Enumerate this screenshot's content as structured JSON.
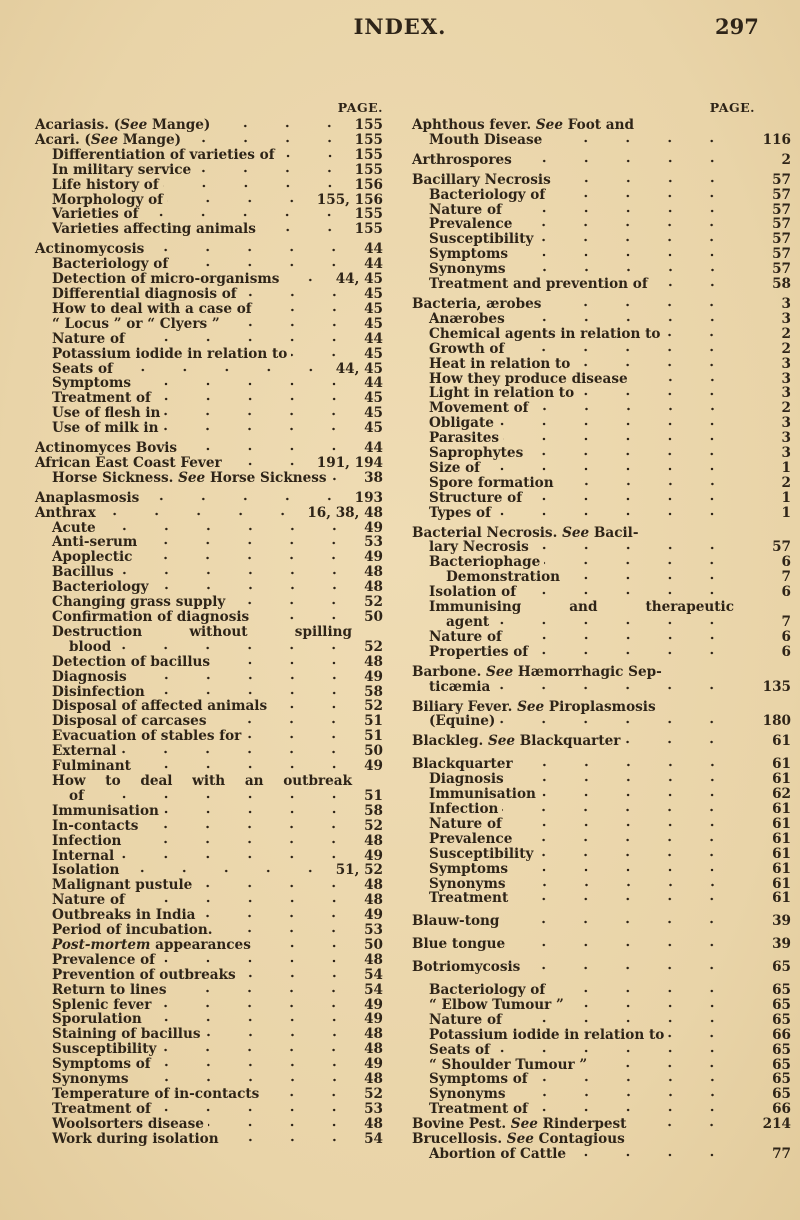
{
  "header": {
    "title": "INDEX.",
    "page_number": "297"
  },
  "left": {
    "page_label": "PAGE.",
    "entries": [
      {
        "t": "Acariasis. (",
        "em": "See",
        "t2": " Mange)",
        "p": "155",
        "i": 0
      },
      {
        "t": "Acari. (",
        "em": "See",
        "t2": " Mange)",
        "p": "155",
        "i": 0
      },
      {
        "t": "Differentiation of varieties of",
        "p": "155",
        "i": 1
      },
      {
        "t": "In military service",
        "p": "155",
        "i": 1
      },
      {
        "t": "Life history of",
        "p": "156",
        "i": 1
      },
      {
        "t": "Morphology of",
        "p": "155, 156",
        "i": 1
      },
      {
        "t": "Varieties of",
        "p": "155",
        "i": 1
      },
      {
        "t": "Varieties affecting animals",
        "p": "155",
        "i": 1
      },
      {
        "t": "Actinomycosis",
        "p": "44",
        "i": 0,
        "g": 1
      },
      {
        "t": "Bacteriology of",
        "p": "44",
        "i": 1
      },
      {
        "t": "Detection of micro-organisms",
        "p": "44, 45",
        "i": 1
      },
      {
        "t": "Differential diagnosis of",
        "p": "45",
        "i": 1
      },
      {
        "t": "How to deal with a case of",
        "p": "45",
        "i": 1
      },
      {
        "t": "“ Locus ” or “ Clyers ”",
        "p": "45",
        "i": 1
      },
      {
        "t": "Nature of",
        "p": "44",
        "i": 1
      },
      {
        "t": "Potassium iodide in relation to",
        "p": "45",
        "i": 1
      },
      {
        "t": "Seats of",
        "p": "44, 45",
        "i": 1
      },
      {
        "t": "Symptoms",
        "p": "44",
        "i": 1
      },
      {
        "t": "Treatment of",
        "p": "45",
        "i": 1
      },
      {
        "t": "Use of flesh in",
        "p": "45",
        "i": 1
      },
      {
        "t": "Use of milk in",
        "p": "45",
        "i": 1
      },
      {
        "t": "Actinomyces Bovis",
        "p": "44",
        "i": 0,
        "g": 1
      },
      {
        "t": "African East Coast Fever",
        "p": "191, 194",
        "i": 0
      },
      {
        "t": "Horse Sickness. ",
        "em": "See",
        "t2": " Horse Sickness",
        "p": "38",
        "i": 1
      },
      {
        "t": "Anaplasmosis",
        "p": "193",
        "i": 0,
        "g": 1
      },
      {
        "t": "Anthrax",
        "p": "16, 38, 48",
        "i": 0
      },
      {
        "t": "Acute",
        "p": "49",
        "i": 1
      },
      {
        "t": "Anti-serum",
        "p": "53",
        "i": 1
      },
      {
        "t": "Apoplectic",
        "p": "49",
        "i": 1
      },
      {
        "t": "Bacillus",
        "p": "48",
        "i": 1
      },
      {
        "t": "Bacteriology",
        "p": "48",
        "i": 1
      },
      {
        "t": "Changing grass supply",
        "p": "52",
        "i": 1
      },
      {
        "t": "Confirmation of diagnosis",
        "p": "50",
        "i": 1
      },
      {
        "t": "Destruction without spilling",
        "cont": "blood",
        "p": "52",
        "i": 1
      },
      {
        "t": "Detection of bacillus",
        "p": "48",
        "i": 1
      },
      {
        "t": "Diagnosis",
        "p": "49",
        "i": 1
      },
      {
        "t": "Disinfection",
        "p": "58",
        "i": 1
      },
      {
        "t": "Disposal of affected animals",
        "p": "52",
        "i": 1
      },
      {
        "t": "Disposal of carcases",
        "p": "51",
        "i": 1
      },
      {
        "t": "Evacuation of stables for",
        "p": "51",
        "i": 1
      },
      {
        "t": "External",
        "p": "50",
        "i": 1
      },
      {
        "t": "Fulminant",
        "p": "49",
        "i": 1
      },
      {
        "t": "How to deal with an outbreak",
        "cont": "of",
        "p": "51",
        "i": 1
      },
      {
        "t": "Immunisation",
        "p": "58",
        "i": 1
      },
      {
        "t": "In-contacts",
        "p": "52",
        "i": 1
      },
      {
        "t": "Infection",
        "p": "48",
        "i": 1
      },
      {
        "t": "Internal",
        "p": "49",
        "i": 1
      },
      {
        "t": "Isolation",
        "p": "51, 52",
        "i": 1
      },
      {
        "t": "Malignant pustule",
        "p": "48",
        "i": 1
      },
      {
        "t": "Nature of",
        "p": "48",
        "i": 1
      },
      {
        "t": "Outbreaks in India",
        "p": "49",
        "i": 1
      },
      {
        "t": "Period of incubation.",
        "p": "53",
        "i": 1
      },
      {
        "t": "",
        "em": "Post-mortem",
        "t2": " appearances",
        "p": "50",
        "i": 1
      },
      {
        "t": "Prevalence of",
        "p": "48",
        "i": 1
      },
      {
        "t": "Prevention of outbreaks",
        "p": "54",
        "i": 1
      },
      {
        "t": "Return to lines",
        "p": "54",
        "i": 1
      },
      {
        "t": "Splenic fever",
        "p": "49",
        "i": 1
      },
      {
        "t": "Sporulation",
        "p": "49",
        "i": 1
      },
      {
        "t": "Staining of bacillus",
        "p": "48",
        "i": 1
      },
      {
        "t": "Susceptibility",
        "p": "48",
        "i": 1
      },
      {
        "t": "Symptoms of",
        "p": "49",
        "i": 1
      },
      {
        "t": "Synonyms",
        "p": "48",
        "i": 1
      },
      {
        "t": "Temperature of in-contacts",
        "p": "52",
        "i": 1
      },
      {
        "t": "Treatment of",
        "p": "53",
        "i": 1
      },
      {
        "t": "Woolsorters disease",
        "p": "48",
        "i": 1
      },
      {
        "t": "Work during isolation",
        "p": "54",
        "i": 1
      }
    ]
  },
  "right": {
    "page_label": "PAGE.",
    "entries": [
      {
        "t": "Aphthous fever. ",
        "em": "See",
        "t2": " Foot and",
        "cont": "Mouth Disease",
        "p": "116",
        "i": 0
      },
      {
        "t": "Arthrospores",
        "p": "2",
        "i": 0,
        "g": 1
      },
      {
        "t": "Bacillary Necrosis",
        "p": "57",
        "i": 0,
        "g": 1
      },
      {
        "t": "Bacteriology of",
        "p": "57",
        "i": 1
      },
      {
        "t": "Nature of",
        "p": "57",
        "i": 1
      },
      {
        "t": "Prevalence",
        "p": "57",
        "i": 1
      },
      {
        "t": "Susceptibility",
        "p": "57",
        "i": 1
      },
      {
        "t": "Symptoms",
        "p": "57",
        "i": 1
      },
      {
        "t": "Synonyms",
        "p": "57",
        "i": 1
      },
      {
        "t": "Treatment and prevention of",
        "p": "58",
        "i": 1
      },
      {
        "t": "Bacteria, ærobes",
        "p": "3",
        "i": 0,
        "g": 1
      },
      {
        "t": "Anærobes",
        "p": "3",
        "i": 1
      },
      {
        "t": "Chemical agents in relation to",
        "p": "2",
        "i": 1
      },
      {
        "t": "Growth of",
        "p": "2",
        "i": 1
      },
      {
        "t": "Heat in relation to",
        "p": "3",
        "i": 1
      },
      {
        "t": "How they produce disease",
        "p": "3",
        "i": 1
      },
      {
        "t": "Light in relation to",
        "p": "3",
        "i": 1
      },
      {
        "t": "Movement of",
        "p": "2",
        "i": 1
      },
      {
        "t": "Obligate",
        "p": "3",
        "i": 1
      },
      {
        "t": "Parasites",
        "p": "3",
        "i": 1
      },
      {
        "t": "Saprophytes",
        "p": "3",
        "i": 1
      },
      {
        "t": "Size of",
        "p": "1",
        "i": 1
      },
      {
        "t": "Spore formation",
        "p": "2",
        "i": 1
      },
      {
        "t": "Structure of",
        "p": "1",
        "i": 1
      },
      {
        "t": "Types of",
        "p": "1",
        "i": 1
      },
      {
        "t": "Bacterial Necrosis. ",
        "em": "See",
        "t2": " Bacil-",
        "cont": "lary Necrosis",
        "p": "57",
        "i": 0,
        "g": 1
      },
      {
        "t": "Bacteriophage",
        "p": "6",
        "i": 1
      },
      {
        "t": "Demonstration",
        "p": "7",
        "i": 2
      },
      {
        "t": "Isolation of",
        "p": "6",
        "i": 1
      },
      {
        "t": "Immunising and therapeutic",
        "cont": "agent",
        "p": "7",
        "i": 1
      },
      {
        "t": "Nature of",
        "p": "6",
        "i": 1
      },
      {
        "t": "Properties of",
        "p": "6",
        "i": 1
      },
      {
        "t": "Barbone. ",
        "em": "See",
        "t2": " Hæmorrhagic Sep-",
        "cont": "ticæmia",
        "p": "135",
        "i": 0,
        "g": 1
      },
      {
        "t": "Biliary Fever. ",
        "em": "See",
        "t2": " Piroplasmosis",
        "cont": "(Equine)",
        "p": "180",
        "i": 0,
        "g": 1
      },
      {
        "t": "Blackleg. ",
        "em": "See",
        "t2": " Blackquarter",
        "p": "61",
        "i": 0,
        "g": 1
      },
      {
        "t": "Blackquarter",
        "p": "61",
        "i": 0,
        "g": 2
      },
      {
        "t": "Diagnosis",
        "p": "61",
        "i": 1
      },
      {
        "t": "Immunisation",
        "p": "62",
        "i": 1
      },
      {
        "t": "Infection",
        "p": "61",
        "i": 1
      },
      {
        "t": "Nature of",
        "p": "61",
        "i": 1
      },
      {
        "t": "Prevalence",
        "p": "61",
        "i": 1
      },
      {
        "t": "Susceptibility",
        "p": "61",
        "i": 1
      },
      {
        "t": "Symptoms",
        "p": "61",
        "i": 1
      },
      {
        "t": "Synonyms",
        "p": "61",
        "i": 1
      },
      {
        "t": "Treatment",
        "p": "61",
        "i": 1
      },
      {
        "t": "Blauw-tong",
        "p": "39",
        "i": 0,
        "g": 2
      },
      {
        "t": "Blue tongue",
        "p": "39",
        "i": 0,
        "g": 2
      },
      {
        "t": "Botriomycosis",
        "p": "65",
        "i": 0,
        "g": 2
      },
      {
        "t": "Bacteriology of",
        "p": "65",
        "i": 1,
        "g": 2
      },
      {
        "t": "“ Elbow Tumour ”",
        "p": "65",
        "i": 1
      },
      {
        "t": "Nature of",
        "p": "65",
        "i": 1
      },
      {
        "t": "Potassium iodide in relation to",
        "p": "66",
        "i": 1
      },
      {
        "t": "Seats of",
        "p": "65",
        "i": 1
      },
      {
        "t": "“ Shoulder Tumour ”",
        "p": "65",
        "i": 1
      },
      {
        "t": "Symptoms of",
        "p": "65",
        "i": 1
      },
      {
        "t": "Synonyms",
        "p": "65",
        "i": 1
      },
      {
        "t": "Treatment of",
        "p": "66",
        "i": 1
      },
      {
        "t": "Bovine Pest. ",
        "em": "See",
        "t2": " Rinderpest",
        "p": "214",
        "i": 0
      },
      {
        "t": "Brucellosis. ",
        "em": "See",
        "t2": " Contagious",
        "cont": "Abortion of Cattle",
        "p": "77",
        "i": 0
      }
    ]
  }
}
